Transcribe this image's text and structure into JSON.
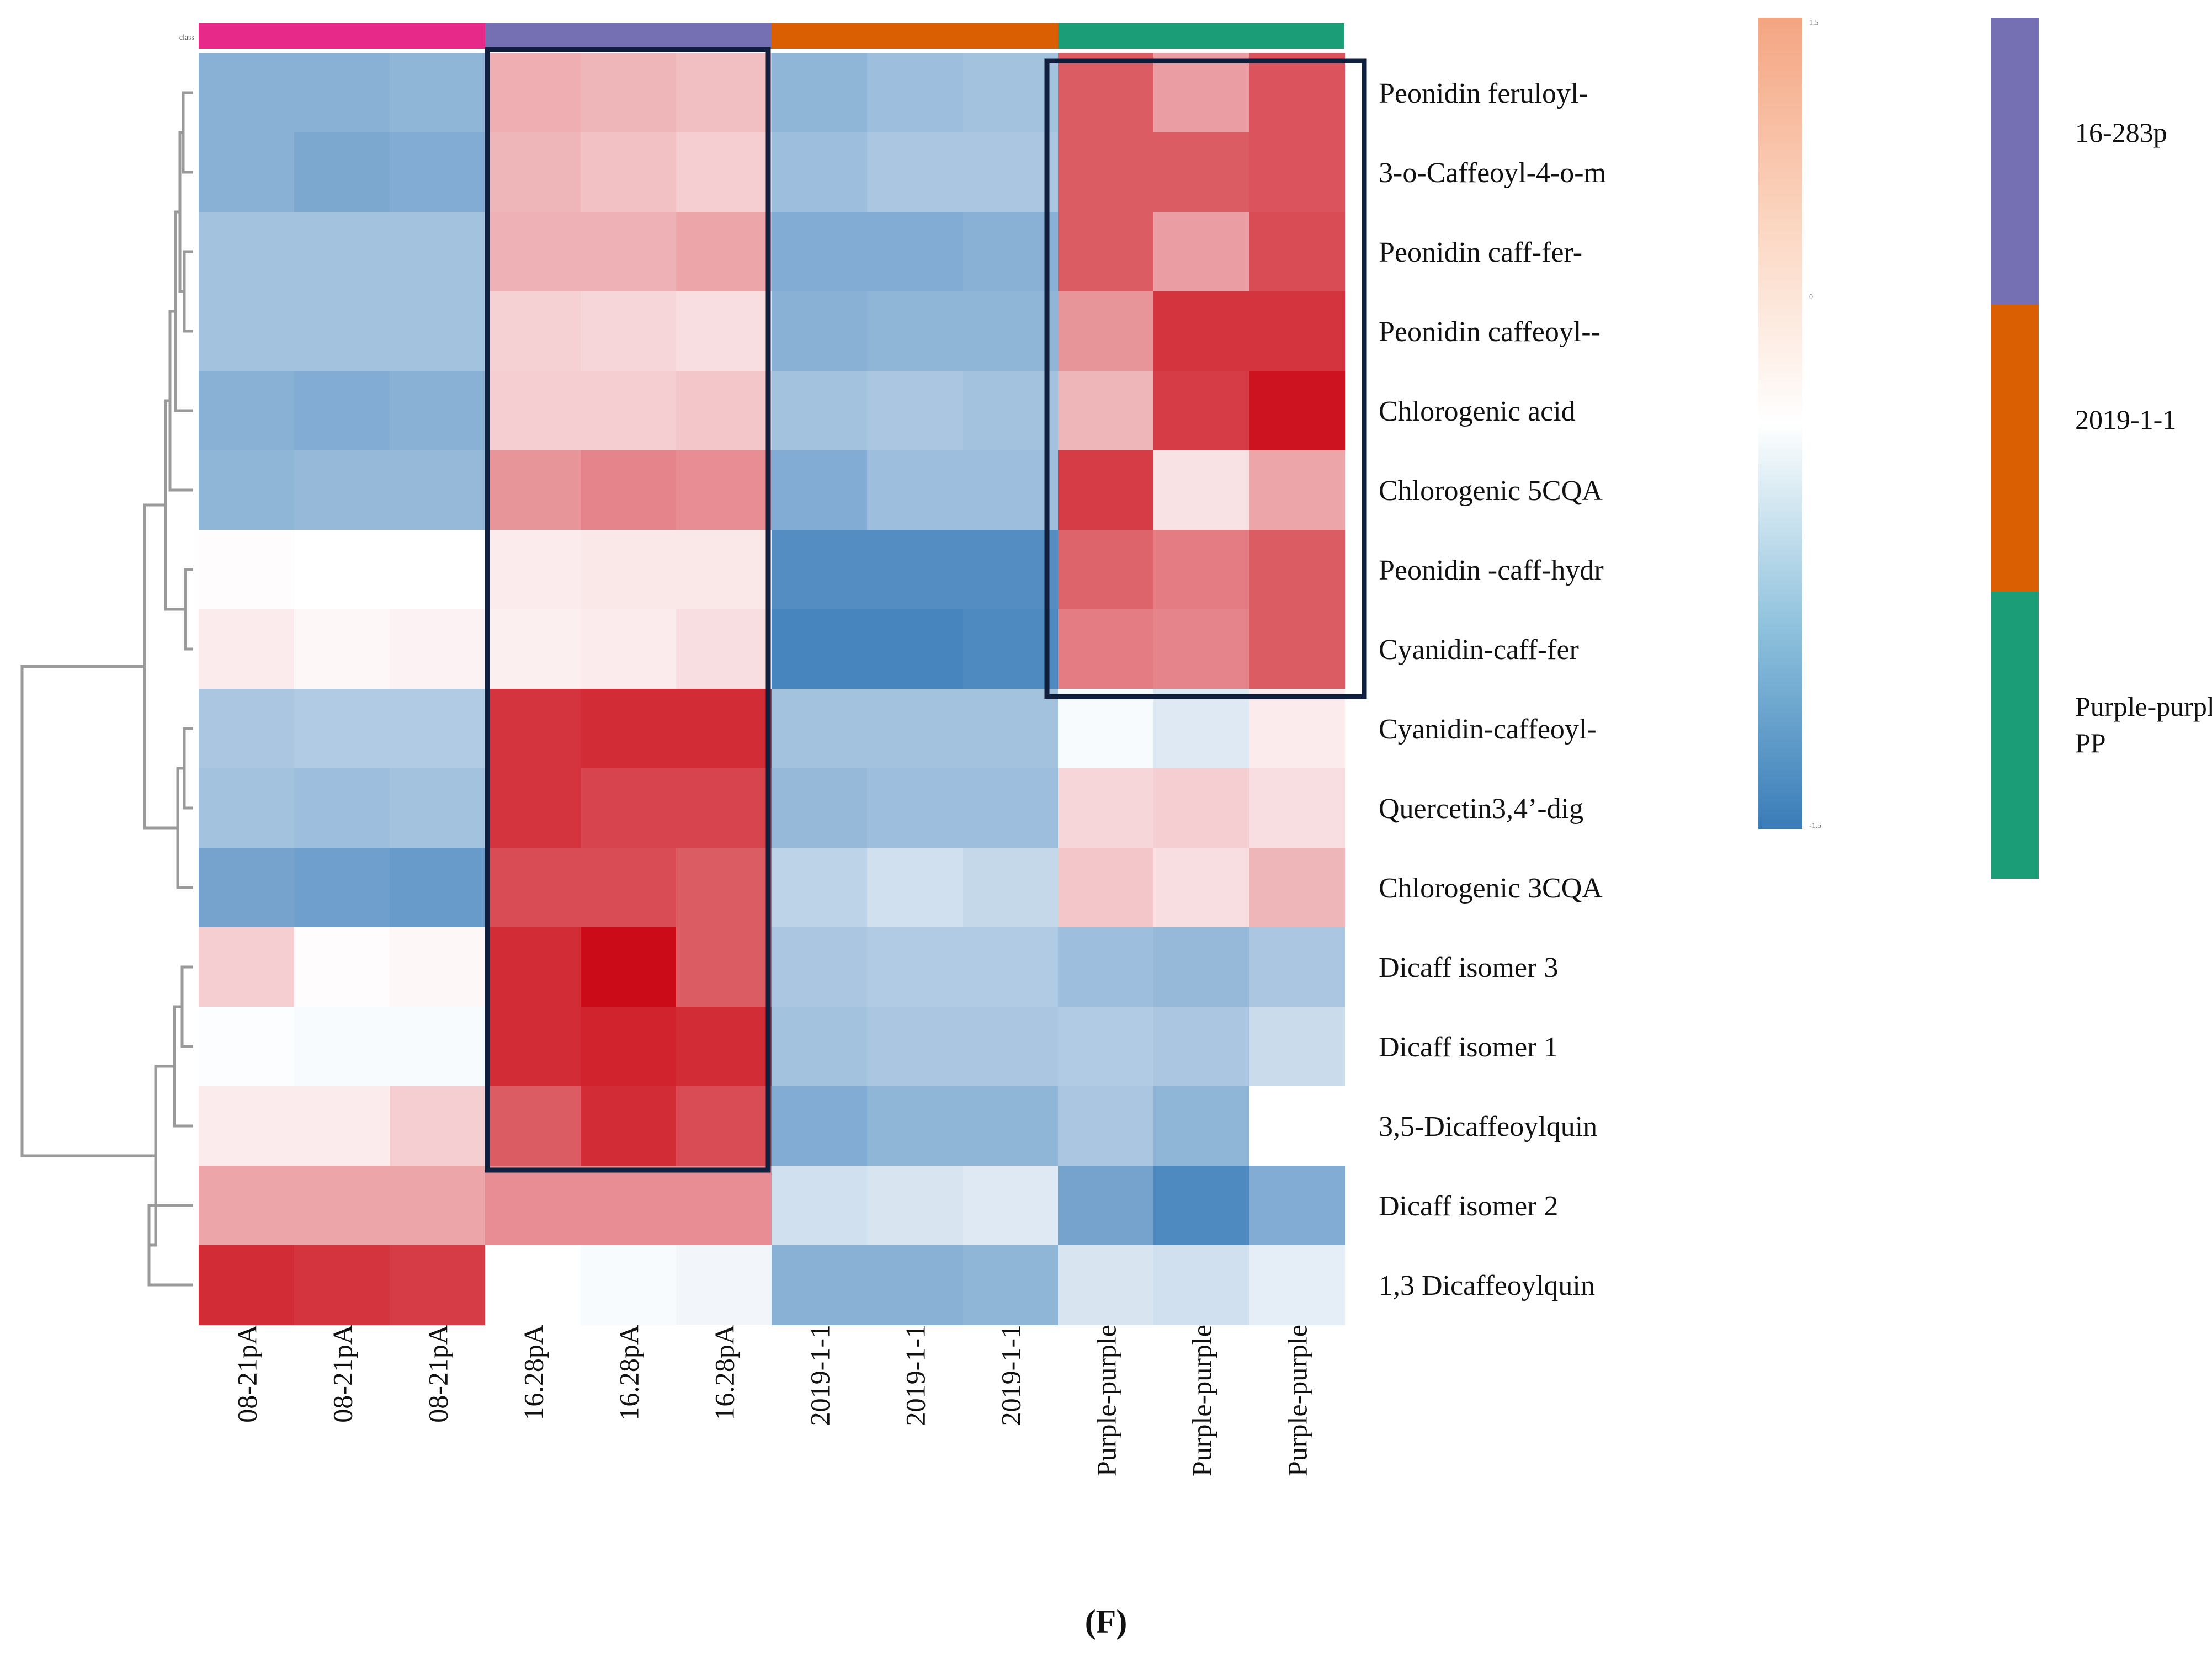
{
  "chart_data": {
    "type": "heatmap",
    "caption": "(F)",
    "annotation_label": "class",
    "rows": [
      "Peonidin feruloyl-",
      "3-o-Caffeoyl-4-o-m",
      "Peonidin caff-fer-",
      "Peonidin caffeoyl--",
      "Chlorogenic acid",
      "Chlorogenic 5CQA",
      "Peonidin -caff-hydr",
      "Cyanidin-caff-fer",
      "Cyanidin-caffeoyl-",
      "Quercetin3,4’-dig",
      "Chlorogenic 3CQA",
      "Dicaff isomer 3",
      "Dicaff isomer 1",
      "3,5-Dicaffeoylquin",
      "Dicaff isomer 2",
      "1,3 Dicaffeoylquin"
    ],
    "columns": [
      "08-21pA",
      "08-21pA",
      "08-21pA",
      "16.28pA",
      "16.28pA",
      "16.28pA",
      "2019-1-1",
      "2019-1-1",
      "2019-1-1",
      "Purple-purple",
      "Purple-purple",
      "Purple-purple"
    ],
    "groups": [
      {
        "name": "08-21pA",
        "color": "#e7298a",
        "start": 0,
        "end": 2
      },
      {
        "name": "16-283p",
        "color": "#7570b3",
        "start": 3,
        "end": 5
      },
      {
        "name": "2019-1-1",
        "color": "#d95f02",
        "start": 6,
        "end": 8
      },
      {
        "name": "Purple-purple PP",
        "color": "#1b9e77",
        "start": 9,
        "end": 11
      }
    ],
    "legend_groups": [
      {
        "label": "16-283p",
        "color": "#7570b3"
      },
      {
        "label": "2019-1-1",
        "color": "#d95f02"
      },
      {
        "label": "Purple-purple PP",
        "color": "#1b9e77"
      }
    ],
    "color_scale": {
      "min": -1.5,
      "max": 1.5,
      "ticks": [
        "1.5",
        "0",
        "-1.5"
      ],
      "low": "#3a7cb9",
      "mid": "#ffffff",
      "high": "#cb0b17"
    },
    "values": [
      [
        -0.9,
        -0.9,
        -0.85,
        0.5,
        0.45,
        0.4,
        -0.85,
        -0.75,
        -0.7,
        1.0,
        0.6,
        1.05
      ],
      [
        -0.9,
        -1.0,
        -0.95,
        0.45,
        0.38,
        0.3,
        -0.75,
        -0.65,
        -0.65,
        1.0,
        1.0,
        1.05
      ],
      [
        -0.7,
        -0.7,
        -0.7,
        0.48,
        0.48,
        0.55,
        -0.95,
        -0.95,
        -0.9,
        1.0,
        0.6,
        1.1
      ],
      [
        -0.7,
        -0.7,
        -0.7,
        0.28,
        0.25,
        0.2,
        -0.9,
        -0.85,
        -0.85,
        0.65,
        1.25,
        1.25
      ],
      [
        -0.9,
        -0.95,
        -0.9,
        0.3,
        0.3,
        0.35,
        -0.7,
        -0.65,
        -0.7,
        0.45,
        1.2,
        1.45
      ],
      [
        -0.85,
        -0.8,
        -0.8,
        0.65,
        0.75,
        0.7,
        -0.95,
        -0.75,
        -0.75,
        1.2,
        0.18,
        0.55
      ],
      [
        0.02,
        0.0,
        0.0,
        0.12,
        0.15,
        0.15,
        -1.3,
        -1.3,
        -1.3,
        0.95,
        0.8,
        1.0
      ],
      [
        0.12,
        0.05,
        0.08,
        0.1,
        0.12,
        0.2,
        -1.4,
        -1.4,
        -1.35,
        0.8,
        0.75,
        1.0
      ],
      [
        -0.65,
        -0.6,
        -0.6,
        1.25,
        1.3,
        1.3,
        -0.7,
        -0.7,
        -0.7,
        -0.05,
        -0.25,
        0.12
      ],
      [
        -0.7,
        -0.75,
        -0.7,
        1.25,
        1.15,
        1.15,
        -0.8,
        -0.75,
        -0.75,
        0.25,
        0.3,
        0.2
      ],
      [
        -1.05,
        -1.1,
        -1.15,
        1.1,
        1.1,
        1.0,
        -0.5,
        -0.35,
        -0.45,
        0.35,
        0.2,
        0.45
      ],
      [
        0.3,
        0.02,
        0.05,
        1.3,
        1.5,
        1.0,
        -0.65,
        -0.6,
        -0.6,
        -0.75,
        -0.8,
        -0.65
      ],
      [
        -0.02,
        -0.05,
        -0.05,
        1.3,
        1.35,
        1.3,
        -0.7,
        -0.65,
        -0.65,
        -0.6,
        -0.65,
        -0.4
      ],
      [
        0.12,
        0.12,
        0.3,
        1.0,
        1.3,
        1.1,
        -0.95,
        -0.85,
        -0.85,
        -0.65,
        -0.85,
        0.0
      ],
      [
        0.55,
        0.55,
        0.55,
        0.7,
        0.7,
        0.7,
        -0.35,
        -0.3,
        -0.25,
        -1.05,
        -1.35,
        -0.95
      ],
      [
        1.3,
        1.25,
        1.2,
        0.0,
        -0.05,
        -0.1,
        -0.9,
        -0.9,
        -0.85,
        -0.3,
        -0.35,
        -0.2
      ]
    ],
    "highlight_boxes": [
      {
        "columns": [
          3,
          5
        ],
        "rows": [
          0,
          13
        ]
      },
      {
        "columns": [
          9,
          11
        ],
        "rows": [
          0,
          7
        ]
      }
    ]
  }
}
